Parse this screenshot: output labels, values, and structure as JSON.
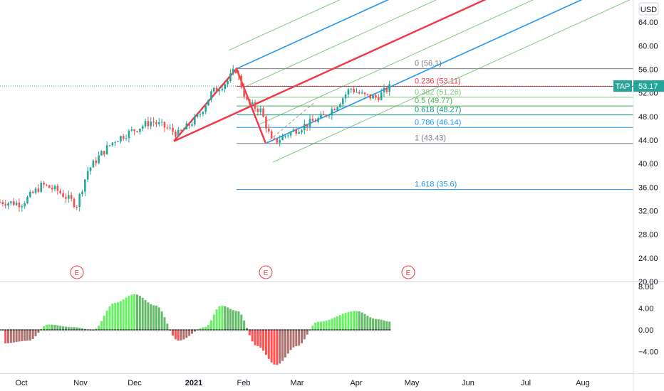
{
  "currency": "USD",
  "ticker": {
    "symbol": "TAP",
    "price": "53.17",
    "value": 53.17,
    "color": "#26a69a"
  },
  "price_axis": {
    "labels": [
      "64.00",
      "60.00",
      "56.00",
      "52.00",
      "48.00",
      "44.00",
      "40.00",
      "36.00",
      "32.00",
      "28.00",
      "24.00",
      "20.00"
    ],
    "values": [
      64,
      60,
      56,
      52,
      48,
      44,
      40,
      36,
      32,
      28,
      24,
      20
    ],
    "range": [
      20,
      68
    ]
  },
  "indicator_axis": {
    "labels": [
      "8.00",
      "4.00",
      "0.00",
      "−4.00"
    ],
    "values": [
      8,
      4,
      0,
      -4
    ],
    "range": [
      -7,
      8.3
    ]
  },
  "time_axis": {
    "labels": [
      "Oct",
      "Nov",
      "Dec",
      "2021",
      "Feb",
      "Mar",
      "Apr",
      "May",
      "Jun",
      "Jul",
      "Aug"
    ],
    "bold": [
      false,
      false,
      false,
      true,
      false,
      false,
      false,
      false,
      false,
      false,
      false
    ]
  },
  "earnings_markers": {
    "label": "E",
    "count": 3,
    "color": "#f23645"
  },
  "fib_levels": [
    {
      "label": "0 (56.1)",
      "value": 56.1,
      "color": "#787b86"
    },
    {
      "label": "0.236 (53.11)",
      "value": 53.11,
      "color": "#f23645"
    },
    {
      "label": "0.382 (51.26)",
      "value": 51.26,
      "color": "#81c784"
    },
    {
      "label": "0.5 (49.77)",
      "value": 49.77,
      "color": "#4caf50"
    },
    {
      "label": "0.618 (48.27)",
      "value": 48.27,
      "color": "#089981"
    },
    {
      "label": "0.786 (46.14)",
      "value": 46.14,
      "color": "#2196f3"
    },
    {
      "label": "1 (43.43)",
      "value": 43.43,
      "color": "#787b86"
    },
    {
      "label": "1.618 (35.6)",
      "value": 35.6,
      "color": "#2196f3"
    }
  ],
  "colors": {
    "up": "#26a69a",
    "down": "#ef5350",
    "hist_up_strong": "#4caf50",
    "hist_up_weak": "#a5d6a7",
    "hist_down_strong": "#ef5350",
    "hist_down_weak": "#ffcdd2",
    "pitchfork_median": "#f23645",
    "pitchfork_outer": "#2196f3",
    "pitchfork_inner": "#4caf50"
  },
  "chart_data": {
    "type": "candlestick",
    "x_start": "Sep 2020",
    "x_end": "Aug 2021",
    "ylim": [
      20,
      68
    ],
    "close_path": [
      [
        "Sep 21",
        33.5
      ],
      [
        "Oct 1",
        33.2
      ],
      [
        "Oct 12",
        36.4
      ],
      [
        "Oct 20",
        35.4
      ],
      [
        "Oct 30",
        33.0
      ],
      [
        "Nov 5",
        38.8
      ],
      [
        "Nov 12",
        41.5
      ],
      [
        "Nov 20",
        44.0
      ],
      [
        "Nov 30",
        45.6
      ],
      [
        "Dec 10",
        47.2
      ],
      [
        "Dec 18",
        46.0
      ],
      [
        "Dec 24",
        45.0
      ],
      [
        "Jan 4",
        48.0
      ],
      [
        "Jan 12",
        52.0
      ],
      [
        "Jan 22",
        54.0
      ],
      [
        "Jan 27",
        56.1
      ],
      [
        "Feb 3",
        50.2
      ],
      [
        "Feb 10",
        49.0
      ],
      [
        "Feb 16",
        43.43
      ],
      [
        "Feb 25",
        45.2
      ],
      [
        "Mar 5",
        46.5
      ],
      [
        "Mar 15",
        48.0
      ],
      [
        "Mar 22",
        50.0
      ],
      [
        "Mar 29",
        52.8
      ],
      [
        "Apr 5",
        51.5
      ],
      [
        "Apr 12",
        51.2
      ],
      [
        "Apr 20",
        53.17
      ]
    ],
    "oscillator": {
      "type": "histogram",
      "path": [
        [
          "Sep 21",
          -2.5
        ],
        [
          "Oct 5",
          -2.0
        ],
        [
          "Oct 15",
          1.0
        ],
        [
          "Oct 28",
          0.5
        ],
        [
          "Nov 8",
          0.0
        ],
        [
          "Nov 20",
          5.0
        ],
        [
          "Dec 1",
          6.6
        ],
        [
          "Dec 12",
          4.5
        ],
        [
          "Dec 24",
          -2.0
        ],
        [
          "Jan 8",
          0.5
        ],
        [
          "Jan 18",
          4.5
        ],
        [
          "Jan 28",
          3.5
        ],
        [
          "Feb 8",
          -3.0
        ],
        [
          "Feb 18",
          -6.5
        ],
        [
          "Mar 1",
          -3.0
        ],
        [
          "Mar 12",
          1.5
        ],
        [
          "Apr 1",
          3.5
        ],
        [
          "Apr 12",
          2.0
        ],
        [
          "Apr 20",
          1.5
        ]
      ]
    }
  }
}
